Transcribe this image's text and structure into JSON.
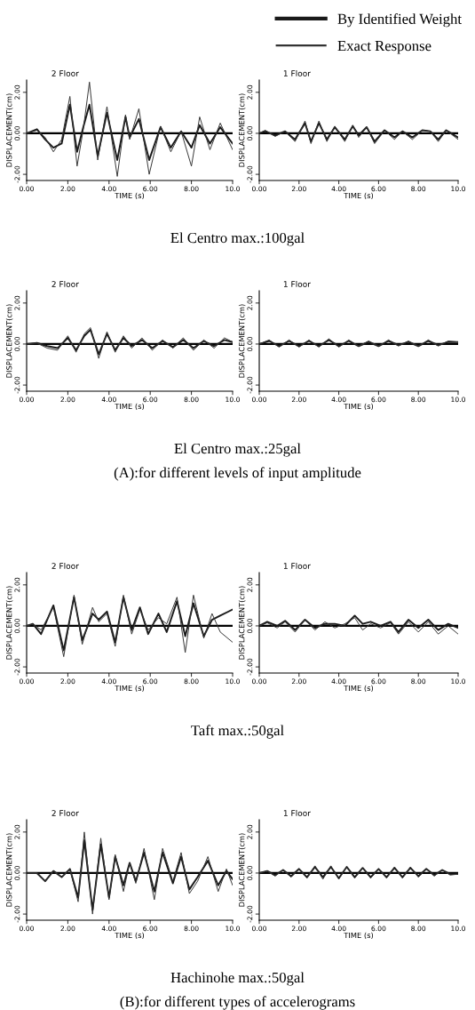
{
  "chart_data": [
    {
      "type": "line",
      "title": "2 Floor",
      "xlabel": "TIME (s)",
      "ylabel": "DISPLACEMENT(cm)",
      "legend": "top right",
      "xlim": [
        0,
        10
      ],
      "ylim": [
        -2.3,
        2.6
      ],
      "xticks": [
        {
          "value": 0,
          "label": "0.00"
        },
        {
          "value": 2,
          "label": "2.00"
        },
        {
          "value": 4,
          "label": "4.00"
        },
        {
          "value": 6,
          "label": "6.00"
        },
        {
          "value": 8,
          "label": "8.00"
        },
        {
          "value": 10,
          "label": "10.0"
        }
      ],
      "yticks": [
        {
          "value": -2,
          "label": "-2.00"
        },
        {
          "value": 0,
          "label": "0.00"
        },
        {
          "value": 2,
          "label": "2.00"
        }
      ],
      "ref_lines": [
        {
          "axis": "y",
          "value": 0,
          "color": "#000000"
        }
      ],
      "annotations": [
        "El Centro max.:100gal"
      ],
      "series": [
        {
          "name": "By Identified Weight",
          "color": "#1a1a1a",
          "x": [
            0,
            0.5,
            0.9,
            1.3,
            1.7,
            2.1,
            2.45,
            2.75,
            3.05,
            3.45,
            3.9,
            4.4,
            4.8,
            5.0,
            5.45,
            5.95,
            6.5,
            7.0,
            7.5,
            8.0,
            8.4,
            8.9,
            9.4,
            10
          ],
          "values": [
            0,
            0.2,
            -0.3,
            -0.7,
            -0.5,
            1.4,
            -0.9,
            0.3,
            1.4,
            -1.1,
            1.0,
            -1.3,
            0.8,
            -0.2,
            0.7,
            -1.3,
            0.3,
            -0.7,
            0.1,
            -0.7,
            0.4,
            -0.5,
            0.3,
            -0.5
          ]
        },
        {
          "name": "Exact Response",
          "color": "#333333",
          "x": [
            0,
            0.5,
            0.9,
            1.3,
            1.7,
            2.1,
            2.45,
            2.75,
            3.05,
            3.45,
            3.9,
            4.4,
            4.8,
            5.0,
            5.45,
            5.95,
            6.5,
            7.0,
            7.5,
            8.0,
            8.4,
            8.9,
            9.4,
            10
          ],
          "values": [
            0,
            0.15,
            -0.2,
            -0.9,
            -0.3,
            1.8,
            -1.6,
            0.2,
            2.5,
            -1.3,
            1.3,
            -2.1,
            0.9,
            -0.3,
            1.2,
            -2.0,
            0.35,
            -0.9,
            0.1,
            -1.6,
            0.8,
            -0.8,
            0.5,
            -0.8
          ]
        }
      ]
    },
    {
      "type": "line",
      "title": "1 Floor",
      "xlabel": "TIME (s)",
      "ylabel": "DISPLACEMENT(cm)",
      "xlim": [
        0,
        10
      ],
      "ylim": [
        -2.3,
        2.6
      ],
      "xticks": [
        {
          "value": 0,
          "label": "0.00"
        },
        {
          "value": 2,
          "label": "2.00"
        },
        {
          "value": 4,
          "label": "4.00"
        },
        {
          "value": 6,
          "label": "6.00"
        },
        {
          "value": 8,
          "label": "8.00"
        },
        {
          "value": 10,
          "label": "10.0"
        }
      ],
      "yticks": [
        {
          "value": -2,
          "label": "-2.00"
        },
        {
          "value": 0,
          "label": "0.00"
        },
        {
          "value": 2,
          "label": "2.00"
        }
      ],
      "ref_lines": [
        {
          "axis": "y",
          "value": 0,
          "color": "#000000"
        }
      ],
      "series": [
        {
          "color": "#1a1a1a",
          "x": [
            0,
            0.3,
            0.8,
            1.3,
            1.8,
            2.3,
            2.6,
            3.0,
            3.4,
            3.8,
            4.3,
            4.7,
            5.0,
            5.4,
            5.8,
            6.3,
            6.8,
            7.2,
            7.7,
            8.2,
            8.6,
            9.0,
            9.4,
            10
          ],
          "values": [
            0,
            0.1,
            -0.1,
            0.1,
            -0.3,
            0.5,
            -0.4,
            0.5,
            -0.3,
            0.3,
            -0.3,
            0.35,
            -0.1,
            0.3,
            -0.4,
            0.15,
            -0.2,
            0.1,
            -0.2,
            0.15,
            0.1,
            -0.3,
            0.15,
            -0.2
          ]
        },
        {
          "color": "#333333",
          "x": [
            0,
            0.3,
            0.8,
            1.3,
            1.8,
            2.3,
            2.6,
            3.0,
            3.4,
            3.8,
            4.3,
            4.7,
            5.0,
            5.4,
            5.8,
            6.3,
            6.8,
            7.2,
            7.7,
            8.2,
            8.6,
            9.0,
            9.4,
            10
          ],
          "values": [
            0,
            0.15,
            -0.15,
            0.1,
            -0.4,
            0.6,
            -0.5,
            0.6,
            -0.4,
            0.35,
            -0.4,
            0.4,
            -0.2,
            0.3,
            -0.5,
            0.15,
            -0.3,
            0.1,
            -0.3,
            0.15,
            0.1,
            -0.4,
            0.15,
            -0.3
          ]
        }
      ]
    },
    {
      "type": "line",
      "title": "2 Floor",
      "xlabel": "TIME (s)",
      "ylabel": "DISPLACEMENT(cm)",
      "xlim": [
        0,
        10
      ],
      "ylim": [
        -2.3,
        2.6
      ],
      "xticks": [
        {
          "value": 0,
          "label": "0.00"
        },
        {
          "value": 2,
          "label": "2.00"
        },
        {
          "value": 4,
          "label": "4.00"
        },
        {
          "value": 6,
          "label": "6.00"
        },
        {
          "value": 8,
          "label": "8.00"
        },
        {
          "value": 10,
          "label": "10.0"
        }
      ],
      "yticks": [
        {
          "value": -2,
          "label": "-2.00"
        },
        {
          "value": 0,
          "label": "0.00"
        },
        {
          "value": 2,
          "label": "2.00"
        }
      ],
      "ref_lines": [
        {
          "axis": "y",
          "value": 0,
          "color": "#000000"
        }
      ],
      "annotations": [
        "El Centro max.:25gal",
        "(A):for different levels of input amplitude"
      ],
      "series": [
        {
          "color": "#1a1a1a",
          "x": [
            0,
            0.5,
            1.0,
            1.5,
            2.0,
            2.4,
            2.8,
            3.1,
            3.5,
            3.9,
            4.3,
            4.7,
            5.1,
            5.6,
            6.1,
            6.6,
            7.1,
            7.6,
            8.1,
            8.6,
            9.1,
            9.6,
            10
          ],
          "values": [
            0,
            0.05,
            -0.1,
            -0.2,
            0.3,
            -0.3,
            0.4,
            0.7,
            -0.5,
            0.5,
            -0.3,
            0.3,
            -0.1,
            0.2,
            -0.2,
            0.15,
            -0.15,
            0.2,
            -0.2,
            0.15,
            -0.1,
            0.2,
            0.1
          ]
        },
        {
          "color": "#333333",
          "x": [
            0,
            0.5,
            1.0,
            1.5,
            2.0,
            2.4,
            2.8,
            3.1,
            3.5,
            3.9,
            4.3,
            4.7,
            5.1,
            5.6,
            6.1,
            6.6,
            7.1,
            7.6,
            8.1,
            8.6,
            9.1,
            9.6,
            10
          ],
          "values": [
            0,
            0.05,
            -0.2,
            -0.3,
            0.4,
            -0.4,
            0.5,
            0.8,
            -0.7,
            0.6,
            -0.4,
            0.4,
            -0.2,
            0.3,
            -0.3,
            0.2,
            -0.2,
            0.3,
            -0.3,
            0.2,
            -0.2,
            0.3,
            0.1
          ]
        }
      ]
    },
    {
      "type": "line",
      "title": "1 Floor",
      "xlabel": "TIME (s)",
      "ylabel": "DISPLACEMENT(cm)",
      "xlim": [
        0,
        10
      ],
      "ylim": [
        -2.3,
        2.6
      ],
      "xticks": [
        {
          "value": 0,
          "label": "0.00"
        },
        {
          "value": 2,
          "label": "2.00"
        },
        {
          "value": 4,
          "label": "4.00"
        },
        {
          "value": 6,
          "label": "6.00"
        },
        {
          "value": 8,
          "label": "8.00"
        },
        {
          "value": 10,
          "label": "10.0"
        }
      ],
      "yticks": [
        {
          "value": -2,
          "label": "-2.00"
        },
        {
          "value": 0,
          "label": "0.00"
        },
        {
          "value": 2,
          "label": "2.00"
        }
      ],
      "ref_lines": [
        {
          "axis": "y",
          "value": 0,
          "color": "#000000"
        }
      ],
      "series": [
        {
          "color": "#1a1a1a",
          "x": [
            0,
            0.5,
            1.0,
            1.5,
            2.0,
            2.5,
            3.0,
            3.5,
            4.0,
            4.5,
            5.0,
            5.5,
            6.0,
            6.5,
            7.0,
            7.5,
            8.0,
            8.5,
            9.0,
            9.5,
            10
          ],
          "values": [
            0,
            0.15,
            -0.1,
            0.15,
            -0.1,
            0.15,
            -0.1,
            0.2,
            -0.1,
            0.15,
            -0.1,
            0.1,
            -0.1,
            0.15,
            -0.05,
            0.1,
            -0.1,
            0.15,
            -0.05,
            0.1,
            0.1
          ]
        },
        {
          "color": "#333333",
          "x": [
            0,
            0.5,
            1.0,
            1.5,
            2.0,
            2.5,
            3.0,
            3.5,
            4.0,
            4.5,
            5.0,
            5.5,
            6.0,
            6.5,
            7.0,
            7.5,
            8.0,
            8.5,
            9.0,
            9.5,
            10
          ],
          "values": [
            0,
            0.2,
            -0.15,
            0.2,
            -0.15,
            0.2,
            -0.15,
            0.25,
            -0.15,
            0.2,
            -0.1,
            0.15,
            -0.1,
            0.2,
            -0.1,
            0.15,
            -0.1,
            0.2,
            -0.1,
            0.15,
            0.1
          ]
        }
      ]
    },
    {
      "type": "line",
      "title": "2 Floor",
      "xlabel": "TIME (s)",
      "ylabel": "DISPLACEMENT(cm)",
      "xlim": [
        0,
        10
      ],
      "ylim": [
        -2.3,
        2.6
      ],
      "xticks": [
        {
          "value": 0,
          "label": "0.00"
        },
        {
          "value": 2,
          "label": "2.00"
        },
        {
          "value": 4,
          "label": "4.00"
        },
        {
          "value": 6,
          "label": "6.00"
        },
        {
          "value": 8,
          "label": "8.00"
        },
        {
          "value": 10,
          "label": "10.0"
        }
      ],
      "yticks": [
        {
          "value": -2,
          "label": "-2.00"
        },
        {
          "value": 0,
          "label": "0.00"
        },
        {
          "value": 2,
          "label": "2.00"
        }
      ],
      "ref_lines": [
        {
          "axis": "y",
          "value": 0,
          "color": "#000000"
        }
      ],
      "annotations": [
        "Taft max.:50gal"
      ],
      "series": [
        {
          "color": "#1a1a1a",
          "x": [
            0,
            0.3,
            0.7,
            1.3,
            1.8,
            2.3,
            2.7,
            3.2,
            3.5,
            3.9,
            4.3,
            4.7,
            5.1,
            5.5,
            5.9,
            6.4,
            6.8,
            7.3,
            7.7,
            8.1,
            8.6,
            9.0,
            9.4,
            10
          ],
          "values": [
            0,
            0.1,
            -0.4,
            1.0,
            -1.2,
            1.4,
            -0.7,
            0.6,
            0.3,
            0.7,
            -0.8,
            1.4,
            -0.2,
            0.9,
            -0.4,
            0.6,
            -0.3,
            1.2,
            -0.5,
            1.1,
            -0.5,
            0.3,
            0.5,
            0.8
          ]
        },
        {
          "color": "#333333",
          "x": [
            0,
            0.3,
            0.7,
            1.3,
            1.8,
            2.3,
            2.7,
            3.2,
            3.5,
            3.9,
            4.3,
            4.7,
            5.1,
            5.5,
            5.9,
            6.4,
            6.8,
            7.3,
            7.7,
            8.1,
            8.6,
            9.0,
            9.4,
            10
          ],
          "values": [
            0,
            0.1,
            -0.2,
            0.9,
            -1.5,
            1.5,
            -0.9,
            0.9,
            0.2,
            0.6,
            -1.0,
            1.5,
            -0.4,
            0.8,
            -0.2,
            0.4,
            0.1,
            1.4,
            -1.3,
            1.5,
            -0.6,
            0.6,
            -0.3,
            -0.8
          ]
        }
      ]
    },
    {
      "type": "line",
      "title": "1 Floor",
      "xlabel": "TIME (s)",
      "ylabel": "DISPLACEMENT(cm)",
      "xlim": [
        0,
        10
      ],
      "ylim": [
        -2.3,
        2.6
      ],
      "xticks": [
        {
          "value": 0,
          "label": "0.00"
        },
        {
          "value": 2,
          "label": "2.00"
        },
        {
          "value": 4,
          "label": "4.00"
        },
        {
          "value": 6,
          "label": "6.00"
        },
        {
          "value": 8,
          "label": "8.00"
        },
        {
          "value": 10,
          "label": "10.0"
        }
      ],
      "yticks": [
        {
          "value": -2,
          "label": "-2.00"
        },
        {
          "value": 0,
          "label": "0.00"
        },
        {
          "value": 2,
          "label": "2.00"
        }
      ],
      "ref_lines": [
        {
          "axis": "y",
          "value": 0,
          "color": "#000000"
        }
      ],
      "series": [
        {
          "color": "#1a1a1a",
          "x": [
            0,
            0.4,
            0.9,
            1.3,
            1.8,
            2.3,
            2.8,
            3.3,
            3.8,
            4.3,
            4.8,
            5.2,
            5.6,
            6.1,
            6.6,
            7.0,
            7.5,
            8.0,
            8.5,
            9.0,
            9.5,
            10
          ],
          "values": [
            0,
            0.2,
            0.0,
            0.25,
            -0.2,
            0.3,
            -0.1,
            0.1,
            0.1,
            0.0,
            0.5,
            0.1,
            0.2,
            0.0,
            0.2,
            -0.3,
            0.3,
            -0.1,
            0.3,
            -0.2,
            0.1,
            -0.1
          ]
        },
        {
          "color": "#333333",
          "x": [
            0,
            0.4,
            0.9,
            1.3,
            1.8,
            2.3,
            2.8,
            3.3,
            3.8,
            4.3,
            4.8,
            5.2,
            5.6,
            6.1,
            6.6,
            7.0,
            7.5,
            8.0,
            8.5,
            9.0,
            9.5,
            10
          ],
          "values": [
            0,
            0.15,
            -0.1,
            0.2,
            -0.3,
            0.3,
            -0.2,
            0.2,
            -0.1,
            0.1,
            0.4,
            -0.2,
            0.1,
            -0.1,
            0.15,
            -0.4,
            0.2,
            -0.3,
            0.2,
            -0.4,
            0.0,
            -0.4
          ]
        }
      ]
    },
    {
      "type": "line",
      "title": "2 Floor",
      "xlabel": "TIME (s)",
      "ylabel": "DISPLACEMENT(cm)",
      "xlim": [
        0,
        10
      ],
      "ylim": [
        -2.3,
        2.6
      ],
      "xticks": [
        {
          "value": 0,
          "label": "0.00"
        },
        {
          "value": 2,
          "label": "2.00"
        },
        {
          "value": 4,
          "label": "4.00"
        },
        {
          "value": 6,
          "label": "6.00"
        },
        {
          "value": 8,
          "label": "8.00"
        },
        {
          "value": 10,
          "label": "10.0"
        }
      ],
      "yticks": [
        {
          "value": -2,
          "label": "-2.00"
        },
        {
          "value": 0,
          "label": "0.00"
        },
        {
          "value": 2,
          "label": "2.00"
        }
      ],
      "ref_lines": [
        {
          "axis": "y",
          "value": 0,
          "color": "#000000"
        }
      ],
      "annotations": [
        "Hachinohe max.:50gal",
        "(B):for different types of accelerograms"
      ],
      "series": [
        {
          "color": "#1a1a1a",
          "x": [
            0,
            0.5,
            0.9,
            1.3,
            1.7,
            2.1,
            2.5,
            2.8,
            3.2,
            3.6,
            4.0,
            4.3,
            4.7,
            5.0,
            5.3,
            5.7,
            6.2,
            6.6,
            7.1,
            7.5,
            7.9,
            8.3,
            8.8,
            9.3,
            9.7,
            10
          ],
          "values": [
            0,
            0.0,
            -0.4,
            0.1,
            -0.2,
            0.2,
            -1.2,
            1.6,
            -1.8,
            1.4,
            -1.2,
            0.8,
            -0.6,
            0.5,
            -0.4,
            1.0,
            -0.9,
            1.0,
            -0.5,
            0.8,
            -0.8,
            -0.2,
            0.6,
            -0.6,
            0.1,
            -0.3
          ]
        },
        {
          "color": "#333333",
          "x": [
            0,
            0.5,
            0.9,
            1.3,
            1.7,
            2.1,
            2.5,
            2.8,
            3.2,
            3.6,
            4.0,
            4.3,
            4.7,
            5.0,
            5.3,
            5.7,
            6.2,
            6.6,
            7.1,
            7.5,
            7.9,
            8.3,
            8.8,
            9.3,
            9.7,
            10
          ],
          "values": [
            0,
            0.0,
            -0.4,
            0.1,
            -0.2,
            0.2,
            -1.4,
            2.0,
            -2.0,
            1.7,
            -1.3,
            0.9,
            -0.9,
            0.5,
            -0.5,
            1.2,
            -1.3,
            1.2,
            -0.4,
            1.0,
            -1.0,
            -0.4,
            0.8,
            -0.9,
            0.2,
            -0.6
          ]
        }
      ]
    },
    {
      "type": "line",
      "title": "1 Floor",
      "xlabel": "TIME (s)",
      "ylabel": "DISPLACEMENT(cm)",
      "xlim": [
        0,
        10
      ],
      "ylim": [
        -2.3,
        2.6
      ],
      "xticks": [
        {
          "value": 0,
          "label": "0.00"
        },
        {
          "value": 2,
          "label": "2.00"
        },
        {
          "value": 4,
          "label": "4.00"
        },
        {
          "value": 6,
          "label": "6.00"
        },
        {
          "value": 8,
          "label": "8.00"
        },
        {
          "value": 10,
          "label": "10.0"
        }
      ],
      "yticks": [
        {
          "value": -2,
          "label": "-2.00"
        },
        {
          "value": 0,
          "label": "0.00"
        },
        {
          "value": 2,
          "label": "2.00"
        }
      ],
      "ref_lines": [
        {
          "axis": "y",
          "value": 0,
          "color": "#000000"
        }
      ],
      "series": [
        {
          "color": "#1a1a1a",
          "x": [
            0,
            0.4,
            0.8,
            1.2,
            1.6,
            2.0,
            2.4,
            2.8,
            3.2,
            3.6,
            4.0,
            4.4,
            4.8,
            5.2,
            5.6,
            6.0,
            6.4,
            6.8,
            7.2,
            7.6,
            8.0,
            8.4,
            8.8,
            9.2,
            9.6,
            10
          ],
          "values": [
            0,
            0.1,
            -0.1,
            0.15,
            -0.15,
            0.2,
            -0.2,
            0.3,
            -0.2,
            0.3,
            -0.25,
            0.3,
            -0.2,
            0.25,
            -0.2,
            0.2,
            -0.2,
            0.25,
            -0.2,
            0.25,
            -0.15,
            0.2,
            -0.1,
            0.15,
            -0.05,
            -0.05
          ]
        },
        {
          "color": "#333333",
          "x": [
            0,
            0.4,
            0.8,
            1.2,
            1.6,
            2.0,
            2.4,
            2.8,
            3.2,
            3.6,
            4.0,
            4.4,
            4.8,
            5.2,
            5.6,
            6.0,
            6.4,
            6.8,
            7.2,
            7.6,
            8.0,
            8.4,
            8.8,
            9.2,
            9.6,
            10
          ],
          "values": [
            0,
            0.1,
            -0.15,
            0.15,
            -0.2,
            0.2,
            -0.25,
            0.35,
            -0.3,
            0.35,
            -0.3,
            0.3,
            -0.25,
            0.25,
            -0.25,
            0.2,
            -0.25,
            0.3,
            -0.25,
            0.3,
            -0.2,
            0.2,
            -0.15,
            0.15,
            -0.1,
            -0.05
          ]
        }
      ]
    }
  ]
}
